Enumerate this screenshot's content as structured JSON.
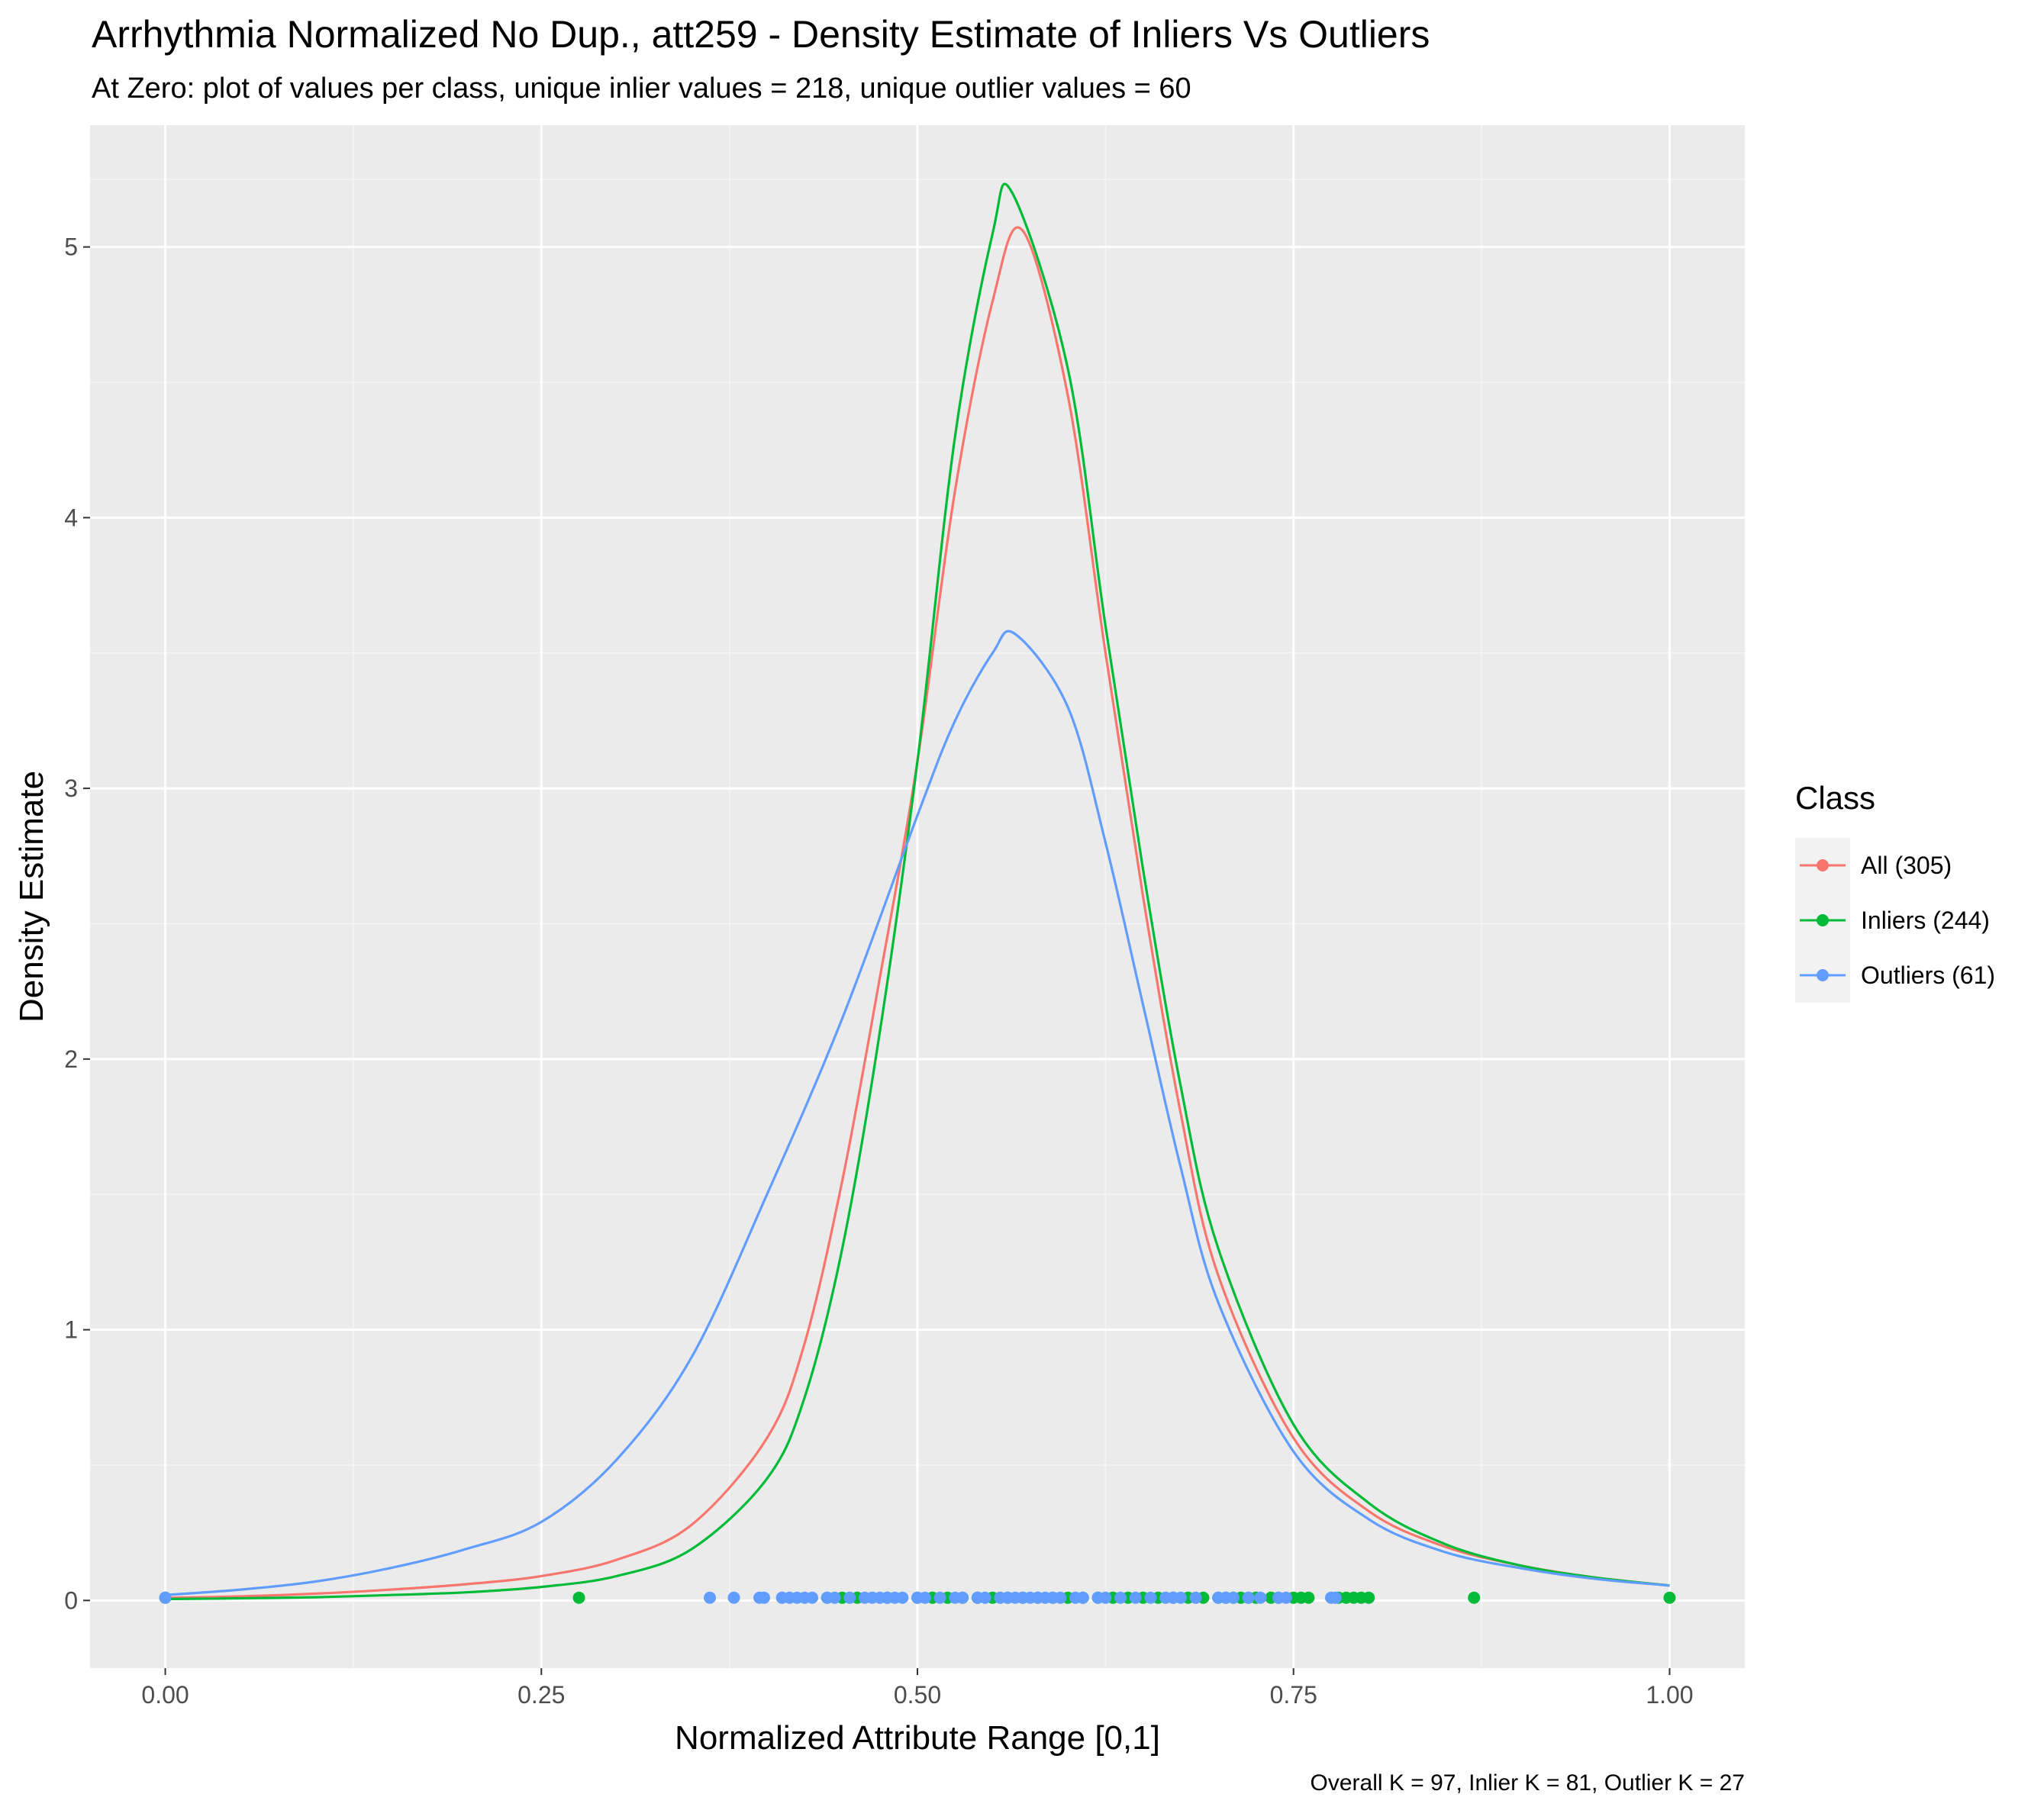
{
  "chart_data": {
    "type": "line",
    "title": "Arrhythmia Normalized No Dup., att259 - Density Estimate of Inliers Vs Outliers",
    "subtitle": "At Zero: plot of values per class, unique inlier values = 218, unique outlier values = 60",
    "xlabel": "Normalized Attribute Range [0,1]",
    "ylabel": "Density Estimate",
    "caption": "Overall K = 97, Inlier K = 81, Outlier K = 27",
    "xlim": [
      -0.05,
      1.05
    ],
    "ylim": [
      -0.25,
      5.45
    ],
    "x_ticks": [
      0,
      0.25,
      0.5,
      0.75,
      1
    ],
    "x_tick_labels": [
      "0.00",
      "0.25",
      "0.50",
      "0.75",
      "1.00"
    ],
    "y_ticks": [
      0,
      1,
      2,
      3,
      4,
      5
    ],
    "y_tick_labels": [
      "0",
      "1",
      "2",
      "3",
      "4",
      "5"
    ],
    "grid": true,
    "legend": {
      "title": "Class",
      "position": "right",
      "entries": [
        "All (305)",
        "Inliers (244)",
        "Outliers (61)"
      ]
    },
    "series": [
      {
        "name": "All (305)",
        "color": "#F8766D",
        "x": [
          0,
          0.05,
          0.1,
          0.15,
          0.2,
          0.25,
          0.3,
          0.35,
          0.4,
          0.425,
          0.45,
          0.475,
          0.5,
          0.525,
          0.55,
          0.57,
          0.6,
          0.625,
          0.65,
          0.675,
          0.7,
          0.75,
          0.8,
          0.85,
          0.9,
          0.95,
          1.0
        ],
        "y": [
          0.01,
          0.015,
          0.025,
          0.04,
          0.06,
          0.09,
          0.15,
          0.28,
          0.6,
          0.95,
          1.55,
          2.3,
          3.1,
          4.1,
          4.8,
          5.06,
          4.45,
          3.5,
          2.6,
          1.8,
          1.2,
          0.6,
          0.33,
          0.2,
          0.13,
          0.085,
          0.055
        ]
      },
      {
        "name": "Inliers (244)",
        "color": "#00BA38",
        "x": [
          0,
          0.05,
          0.1,
          0.15,
          0.2,
          0.25,
          0.3,
          0.35,
          0.4,
          0.425,
          0.45,
          0.475,
          0.5,
          0.525,
          0.55,
          0.563,
          0.6,
          0.625,
          0.65,
          0.675,
          0.7,
          0.75,
          0.8,
          0.85,
          0.9,
          0.95,
          1.0
        ],
        "y": [
          0.005,
          0.008,
          0.012,
          0.02,
          0.03,
          0.05,
          0.09,
          0.19,
          0.45,
          0.75,
          1.3,
          2.1,
          3.1,
          4.3,
          5.05,
          5.2,
          4.55,
          3.6,
          2.7,
          1.9,
          1.3,
          0.65,
          0.36,
          0.21,
          0.13,
          0.085,
          0.055
        ]
      },
      {
        "name": "Outliers (61)",
        "color": "#619CFF",
        "x": [
          0,
          0.05,
          0.1,
          0.15,
          0.2,
          0.25,
          0.3,
          0.35,
          0.4,
          0.45,
          0.5,
          0.525,
          0.55,
          0.565,
          0.6,
          0.625,
          0.65,
          0.675,
          0.7,
          0.75,
          0.8,
          0.85,
          0.9,
          0.95,
          1.0
        ],
        "y": [
          0.02,
          0.04,
          0.07,
          0.12,
          0.19,
          0.29,
          0.52,
          0.9,
          1.5,
          2.15,
          2.9,
          3.25,
          3.5,
          3.57,
          3.3,
          2.8,
          2.2,
          1.6,
          1.1,
          0.55,
          0.3,
          0.18,
          0.12,
          0.08,
          0.055
        ]
      }
    ],
    "points": [
      {
        "name": "Inliers (244)",
        "color": "#00BA38",
        "y": 0.01,
        "x": [
          0,
          0.275,
          0.44,
          0.45,
          0.46,
          0.48,
          0.5,
          0.51,
          0.52,
          0.53,
          0.54,
          0.55,
          0.56,
          0.57,
          0.58,
          0.59,
          0.6,
          0.61,
          0.62,
          0.63,
          0.64,
          0.65,
          0.66,
          0.67,
          0.68,
          0.69,
          0.7,
          0.705,
          0.71,
          0.715,
          0.72,
          0.725,
          0.735,
          0.74,
          0.75,
          0.755,
          0.76,
          0.78,
          0.785,
          0.79,
          0.795,
          0.8,
          0.87,
          1.0
        ]
      },
      {
        "name": "Outliers (61)",
        "color": "#619CFF",
        "y": 0.01,
        "x": [
          0,
          0.362,
          0.378,
          0.395,
          0.398,
          0.41,
          0.415,
          0.42,
          0.425,
          0.43,
          0.44,
          0.445,
          0.455,
          0.465,
          0.47,
          0.475,
          0.48,
          0.485,
          0.49,
          0.5,
          0.505,
          0.515,
          0.525,
          0.53,
          0.54,
          0.545,
          0.555,
          0.56,
          0.565,
          0.57,
          0.575,
          0.58,
          0.585,
          0.59,
          0.595,
          0.605,
          0.61,
          0.62,
          0.625,
          0.635,
          0.645,
          0.655,
          0.665,
          0.67,
          0.675,
          0.685,
          0.7,
          0.705,
          0.71,
          0.72,
          0.728,
          0.74,
          0.745,
          0.775,
          0.778
        ]
      }
    ]
  }
}
